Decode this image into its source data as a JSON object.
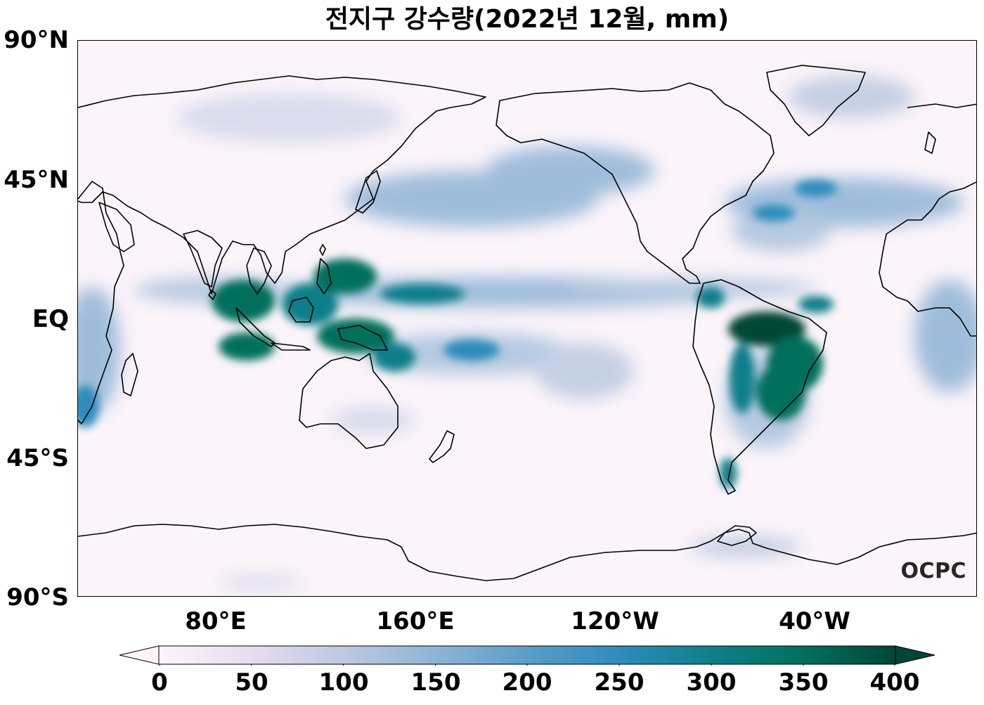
{
  "map": {
    "title": "전지구 강수량(2022년 12월, mm)",
    "watermark": "OCPC",
    "lat_labels": [
      "90°N",
      "45°N",
      "EQ",
      "45°S",
      "90°S"
    ],
    "lon_labels": [
      "80°E",
      "160°E",
      "120°W",
      "40°W"
    ],
    "colorbar": {
      "ticks": [
        "0",
        "50",
        "100",
        "150",
        "200",
        "250",
        "300",
        "350",
        "400"
      ],
      "min": 0,
      "max": 400,
      "extend": "both",
      "colors": [
        "#fdf4fa",
        "#e8dcee",
        "#bcc9e1",
        "#8fb4d6",
        "#5a9ec8",
        "#2f8cbb",
        "#0e7f8a",
        "#02705c",
        "#014636"
      ]
    },
    "colors": {
      "background": "#fbf4f9",
      "coastline": "#000000"
    }
  }
}
